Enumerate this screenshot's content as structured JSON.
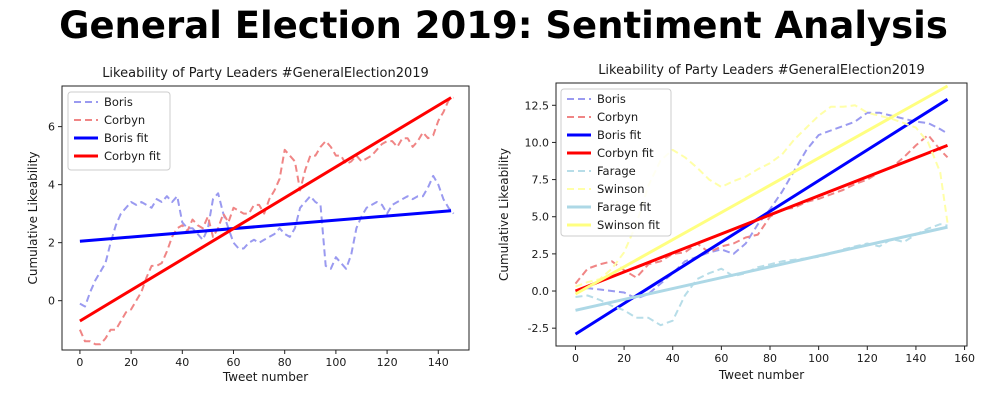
{
  "page": {
    "title": "General Election 2019: Sentiment Analysis"
  },
  "chart_data": [
    {
      "type": "line",
      "title": "Likeability of Party Leaders #GeneralElection2019",
      "xlabel": "Tweet number",
      "ylabel": "Cumulative Likeability",
      "xlim": [
        -7,
        152
      ],
      "ylim": [
        -1.7,
        7.4
      ],
      "xticks": [
        0,
        20,
        40,
        60,
        80,
        100,
        120,
        140
      ],
      "yticks": [
        0,
        2,
        4,
        6
      ],
      "legend_position": "upper-left",
      "series": [
        {
          "name": "Boris",
          "style": "dashed",
          "color": "#9a9af0",
          "x": [
            0,
            2,
            4,
            6,
            8,
            10,
            12,
            14,
            16,
            18,
            20,
            22,
            24,
            26,
            28,
            30,
            32,
            34,
            36,
            38,
            40,
            42,
            44,
            46,
            48,
            50,
            52,
            54,
            56,
            58,
            60,
            62,
            64,
            66,
            68,
            70,
            72,
            74,
            76,
            78,
            80,
            82,
            84,
            86,
            88,
            90,
            92,
            94,
            96,
            98,
            100,
            102,
            104,
            106,
            108,
            110,
            112,
            114,
            116,
            118,
            120,
            122,
            124,
            126,
            128,
            130,
            132,
            134,
            136,
            138,
            140,
            142,
            144,
            146
          ],
          "y": [
            -0.1,
            -0.2,
            0.3,
            0.7,
            1.0,
            1.3,
            2.0,
            2.6,
            3.0,
            3.2,
            3.4,
            3.3,
            3.4,
            3.3,
            3.2,
            3.5,
            3.4,
            3.6,
            3.4,
            3.6,
            2.7,
            2.5,
            2.5,
            2.3,
            2.1,
            2.5,
            3.5,
            3.7,
            3.0,
            2.5,
            2.0,
            1.8,
            1.8,
            2.0,
            2.1,
            2.0,
            2.1,
            2.2,
            2.3,
            2.5,
            2.3,
            2.2,
            2.5,
            3.2,
            3.4,
            3.6,
            3.4,
            3.3,
            1.2,
            1.1,
            1.5,
            1.3,
            1.1,
            1.6,
            2.5,
            2.9,
            3.2,
            3.3,
            3.4,
            3.3,
            3.0,
            3.3,
            3.4,
            3.5,
            3.6,
            3.5,
            3.6,
            3.6,
            3.9,
            4.3,
            4.0,
            3.5,
            3.2,
            3.0
          ]
        },
        {
          "name": "Corbyn",
          "style": "dashed",
          "color": "#f08585",
          "x": [
            0,
            2,
            4,
            6,
            8,
            10,
            12,
            14,
            16,
            18,
            20,
            22,
            24,
            26,
            28,
            30,
            32,
            34,
            36,
            38,
            40,
            42,
            44,
            46,
            48,
            50,
            52,
            54,
            56,
            58,
            60,
            62,
            64,
            66,
            68,
            70,
            72,
            74,
            76,
            78,
            80,
            82,
            84,
            86,
            88,
            90,
            92,
            94,
            96,
            98,
            100,
            102,
            104,
            106,
            108,
            110,
            112,
            114,
            116,
            118,
            120,
            122,
            124,
            126,
            128,
            130,
            132,
            134,
            136,
            138,
            140,
            142,
            144,
            146
          ],
          "y": [
            -1.0,
            -1.4,
            -1.4,
            -1.5,
            -1.5,
            -1.3,
            -1.0,
            -1.0,
            -0.7,
            -0.4,
            -0.3,
            0.0,
            0.3,
            0.8,
            1.2,
            1.2,
            1.3,
            1.7,
            2.2,
            2.5,
            2.6,
            2.4,
            2.8,
            2.6,
            2.5,
            2.9,
            2.2,
            2.5,
            3.0,
            2.7,
            3.2,
            3.1,
            3.0,
            3.0,
            3.3,
            3.3,
            3.0,
            3.5,
            3.8,
            4.2,
            5.2,
            5.0,
            4.8,
            3.8,
            4.5,
            5.0,
            5.0,
            5.3,
            5.5,
            5.3,
            5.0,
            5.0,
            4.7,
            4.8,
            5.0,
            4.8,
            4.9,
            5.0,
            5.2,
            5.4,
            5.5,
            5.5,
            5.3,
            5.6,
            5.6,
            5.3,
            5.5,
            5.8,
            5.6,
            5.7,
            6.2,
            6.5,
            6.9,
            7.0
          ]
        },
        {
          "name": "Boris fit",
          "style": "solid",
          "color": "#0000ff",
          "x": [
            0,
            145
          ],
          "y": [
            2.05,
            3.1
          ]
        },
        {
          "name": "Corbyn fit",
          "style": "solid",
          "color": "#ff0000",
          "x": [
            0,
            145
          ],
          "y": [
            -0.7,
            7.0
          ]
        }
      ]
    },
    {
      "type": "line",
      "title": "Likeability of Party Leaders #GeneralElection2019",
      "xlabel": "Tweet number",
      "ylabel": "Cumulative Likeability",
      "xlim": [
        -8,
        161
      ],
      "ylim": [
        -3.7,
        14.0
      ],
      "xticks": [
        0,
        20,
        40,
        60,
        80,
        100,
        120,
        140,
        160
      ],
      "yticks": [
        -2.5,
        0.0,
        2.5,
        5.0,
        7.5,
        10.0,
        12.5
      ],
      "legend_position": "upper-left",
      "series": [
        {
          "name": "Boris",
          "style": "dashed",
          "color": "#9a9af0",
          "x": [
            0,
            5,
            10,
            15,
            20,
            25,
            30,
            35,
            40,
            45,
            50,
            55,
            60,
            65,
            70,
            75,
            80,
            85,
            90,
            95,
            100,
            105,
            110,
            115,
            120,
            125,
            130,
            135,
            140,
            145,
            150,
            153
          ],
          "y": [
            0.0,
            0.2,
            0.1,
            0.0,
            -0.1,
            -0.5,
            -0.2,
            0.5,
            1.2,
            2.0,
            2.3,
            2.6,
            2.8,
            2.5,
            3.2,
            4.5,
            5.5,
            6.7,
            8.1,
            9.5,
            10.5,
            10.8,
            11.1,
            11.4,
            12.0,
            12.0,
            11.8,
            11.6,
            11.4,
            11.3,
            10.9,
            10.6
          ]
        },
        {
          "name": "Corbyn",
          "style": "dashed",
          "color": "#f08585",
          "x": [
            0,
            5,
            10,
            15,
            20,
            25,
            30,
            35,
            40,
            45,
            50,
            55,
            60,
            65,
            70,
            75,
            80,
            85,
            90,
            95,
            100,
            105,
            110,
            115,
            120,
            125,
            130,
            135,
            140,
            145,
            150,
            153
          ],
          "y": [
            0.5,
            1.5,
            1.8,
            2.0,
            1.4,
            0.9,
            1.8,
            2.0,
            2.5,
            2.6,
            3.2,
            2.6,
            3.0,
            3.2,
            3.6,
            3.8,
            5.0,
            5.5,
            5.6,
            6.0,
            6.2,
            6.5,
            6.8,
            7.2,
            7.5,
            8.0,
            8.3,
            9.0,
            9.8,
            10.5,
            9.5,
            9.0
          ]
        },
        {
          "name": "Boris fit",
          "style": "solid",
          "color": "#0000ff",
          "x": [
            0,
            153
          ],
          "y": [
            -2.9,
            12.9
          ]
        },
        {
          "name": "Corbyn fit",
          "style": "solid",
          "color": "#ff0000",
          "x": [
            0,
            153
          ],
          "y": [
            0.0,
            9.8
          ]
        },
        {
          "name": "Farage",
          "style": "dashed",
          "color": "#b7dde8",
          "x": [
            0,
            5,
            10,
            15,
            20,
            25,
            30,
            35,
            40,
            45,
            50,
            55,
            60,
            65,
            70,
            75,
            80,
            85,
            90,
            95,
            100,
            105,
            110,
            115,
            120,
            125,
            130,
            135,
            140,
            145,
            150,
            153
          ],
          "y": [
            -0.4,
            -0.3,
            -0.6,
            -1.0,
            -1.3,
            -1.8,
            -1.8,
            -2.3,
            -2.0,
            -0.3,
            0.8,
            1.2,
            1.5,
            1.0,
            1.2,
            1.6,
            1.8,
            2.0,
            2.1,
            2.2,
            2.3,
            2.5,
            2.8,
            3.0,
            3.2,
            3.0,
            3.5,
            3.3,
            3.8,
            4.2,
            4.5,
            4.4
          ]
        },
        {
          "name": "Swinson",
          "style": "dashed",
          "color": "#ffffa8",
          "x": [
            0,
            5,
            10,
            15,
            20,
            25,
            30,
            35,
            40,
            45,
            50,
            55,
            60,
            65,
            70,
            75,
            80,
            85,
            90,
            95,
            100,
            105,
            110,
            115,
            120,
            125,
            130,
            135,
            140,
            145,
            150,
            153
          ],
          "y": [
            0.3,
            0.6,
            0.8,
            1.5,
            2.6,
            4.5,
            7.1,
            8.8,
            9.5,
            9.0,
            8.3,
            7.5,
            7.0,
            7.4,
            7.7,
            8.2,
            8.6,
            9.2,
            10.2,
            11.0,
            11.8,
            12.4,
            12.4,
            12.5,
            12.0,
            11.8,
            11.6,
            11.3,
            11.0,
            10.0,
            8.0,
            4.6
          ]
        },
        {
          "name": "Farage fit",
          "style": "solid",
          "color": "#add8e6",
          "x": [
            0,
            153
          ],
          "y": [
            -1.3,
            4.3
          ]
        },
        {
          "name": "Swinson fit",
          "style": "solid",
          "color": "#ffff80",
          "x": [
            0,
            153
          ],
          "y": [
            -0.2,
            13.8
          ]
        }
      ]
    }
  ]
}
